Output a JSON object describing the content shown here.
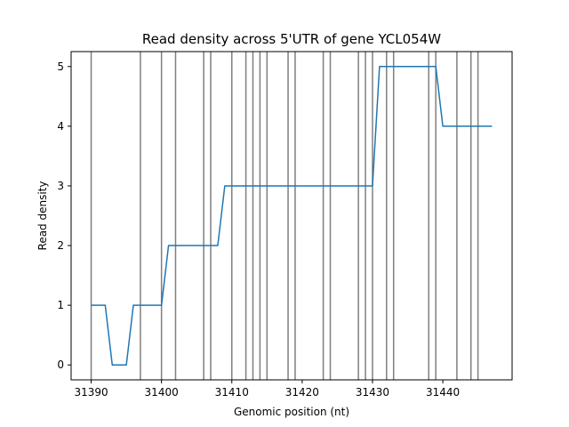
{
  "chart_data": {
    "type": "line",
    "title": "Read density across 5'UTR of gene YCL054W",
    "xlabel": "Genomic position (nt)",
    "ylabel": "Read density",
    "xlim": [
      31387.15,
      31449.85
    ],
    "ylim": [
      -0.25,
      5.25
    ],
    "x_ticks": [
      31390,
      31400,
      31410,
      31420,
      31430,
      31440
    ],
    "y_ticks": [
      0,
      1,
      2,
      3,
      4,
      5
    ],
    "grid": false,
    "series": [
      {
        "color": "#1f77b4",
        "points": [
          [
            31390,
            1
          ],
          [
            31392,
            1
          ],
          [
            31393,
            0
          ],
          [
            31395,
            0
          ],
          [
            31396,
            1
          ],
          [
            31400,
            1
          ],
          [
            31401,
            2
          ],
          [
            31408,
            2
          ],
          [
            31409,
            3
          ],
          [
            31430,
            3
          ],
          [
            31431,
            5
          ],
          [
            31439,
            5
          ],
          [
            31440,
            4
          ],
          [
            31447,
            4
          ]
        ]
      }
    ],
    "vertical_lines": {
      "color": "#7f7f7f",
      "x": [
        31390,
        31397,
        31400,
        31402,
        31406,
        31407,
        31410,
        31412,
        31413,
        31414,
        31415,
        31418,
        31419,
        31423,
        31424,
        31428,
        31429,
        31430,
        31432,
        31433,
        31438,
        31439,
        31442,
        31444,
        31445
      ]
    }
  }
}
